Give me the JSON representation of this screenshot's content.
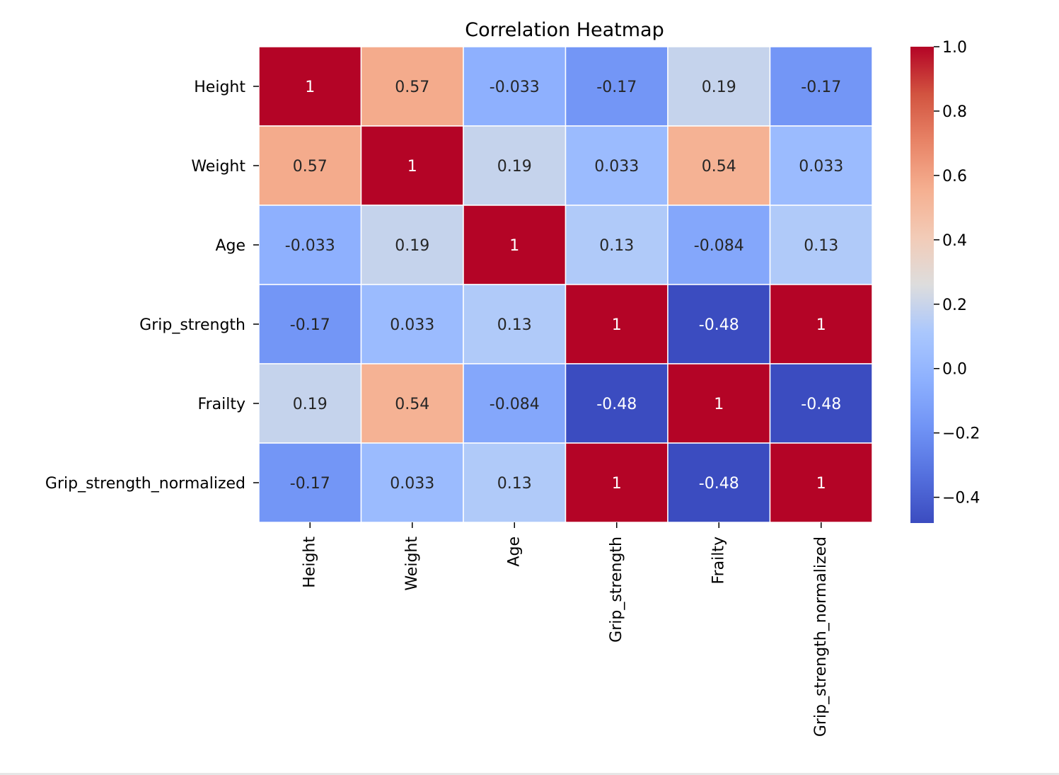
{
  "chart_data": {
    "type": "heatmap",
    "title": "Correlation Heatmap",
    "row_labels": [
      "Height",
      "Weight",
      "Age",
      "Grip_strength",
      "Frailty",
      "Grip_strength_normalized"
    ],
    "col_labels": [
      "Height",
      "Weight",
      "Age",
      "Grip_strength",
      "Frailty",
      "Grip_strength_normalized"
    ],
    "values": [
      [
        1,
        0.57,
        -0.033,
        -0.17,
        0.19,
        -0.17
      ],
      [
        0.57,
        1,
        0.19,
        0.033,
        0.54,
        0.033
      ],
      [
        -0.033,
        0.19,
        1,
        0.13,
        -0.084,
        0.13
      ],
      [
        -0.17,
        0.033,
        0.13,
        1,
        -0.48,
        1
      ],
      [
        0.19,
        0.54,
        -0.084,
        -0.48,
        1,
        -0.48
      ],
      [
        -0.17,
        0.033,
        0.13,
        1,
        -0.48,
        1
      ]
    ],
    "annotations": [
      [
        "1",
        "0.57",
        "-0.033",
        "-0.17",
        "0.19",
        "-0.17"
      ],
      [
        "0.57",
        "1",
        "0.19",
        "0.033",
        "0.54",
        "0.033"
      ],
      [
        "-0.033",
        "0.19",
        "1",
        "0.13",
        "-0.084",
        "0.13"
      ],
      [
        "-0.17",
        "0.033",
        "0.13",
        "1",
        "-0.48",
        "1"
      ],
      [
        "0.19",
        "0.54",
        "-0.084",
        "-0.48",
        "1",
        "-0.48"
      ],
      [
        "-0.17",
        "0.033",
        "0.13",
        "1",
        "-0.48",
        "1"
      ]
    ],
    "colorbar": {
      "vmin": -0.48,
      "vmax": 1.0,
      "ticks": [
        1.0,
        0.8,
        0.6,
        0.4,
        0.2,
        0.0,
        -0.2,
        -0.4
      ],
      "tick_labels": [
        "1.0",
        "0.8",
        "0.6",
        "0.4",
        "0.2",
        "0.0",
        "−0.2",
        "−0.4"
      ],
      "colormap": "coolwarm"
    },
    "colors": {
      "cell_border": "#ffffff",
      "text_dark": "#262626",
      "text_light": "#ffffff"
    }
  }
}
